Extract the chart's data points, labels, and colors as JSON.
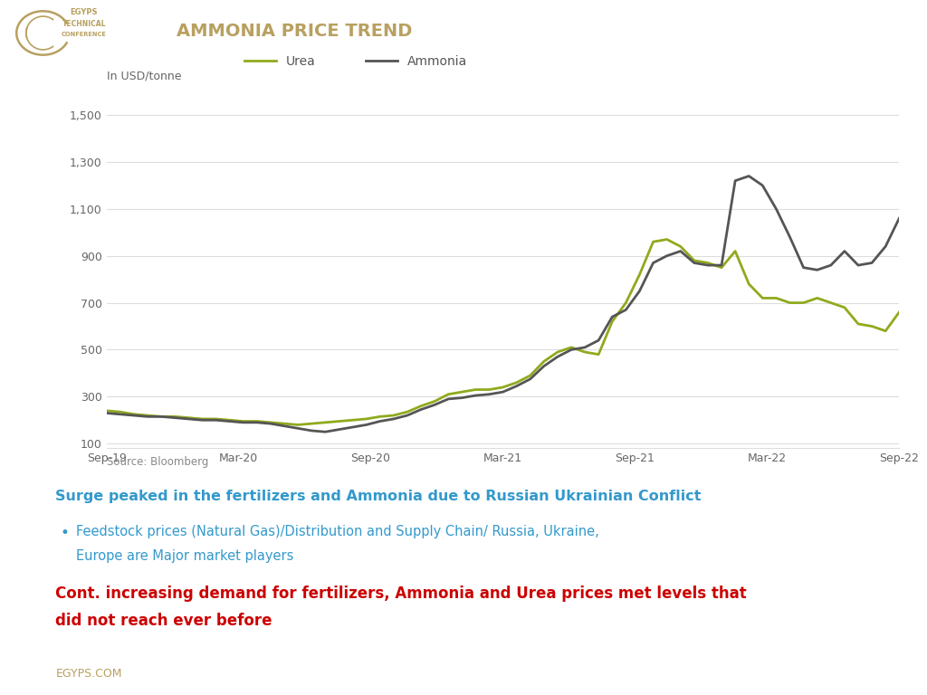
{
  "title": "AMMONIA PRICE TREND",
  "title_color": "#b8a060",
  "ylabel": "In USD/tonne",
  "source_text": "Source: Bloomberg",
  "header_line_color": "#b8a060",
  "x_labels": [
    "Sep-19",
    "Mar-20",
    "Sep-20",
    "Mar-21",
    "Sep-21",
    "Mar-22",
    "Sep-22"
  ],
  "y_ticks": [
    100,
    300,
    500,
    700,
    900,
    1100,
    1300,
    1500
  ],
  "urea_color": "#8faa1c",
  "ammonia_color": "#555555",
  "urea_values": [
    240,
    235,
    225,
    220,
    215,
    215,
    210,
    205,
    205,
    200,
    195,
    195,
    190,
    185,
    180,
    185,
    190,
    195,
    200,
    205,
    215,
    220,
    235,
    260,
    280,
    310,
    320,
    330,
    330,
    340,
    360,
    390,
    450,
    490,
    510,
    490,
    480,
    620,
    700,
    820,
    960,
    970,
    940,
    880,
    870,
    850,
    920,
    780,
    720,
    720,
    700,
    700,
    720,
    700,
    680,
    610,
    600,
    580,
    660
  ],
  "ammonia_values": [
    230,
    225,
    220,
    215,
    215,
    210,
    205,
    200,
    200,
    195,
    190,
    190,
    185,
    175,
    165,
    155,
    150,
    160,
    170,
    180,
    195,
    205,
    220,
    245,
    265,
    290,
    295,
    305,
    310,
    320,
    345,
    375,
    430,
    470,
    500,
    510,
    540,
    640,
    670,
    750,
    870,
    900,
    920,
    870,
    860,
    860,
    1220,
    1240,
    1200,
    1100,
    980,
    850,
    840,
    860,
    920,
    860,
    870,
    940,
    1060
  ],
  "fig_bg": "#ffffff",
  "grid_color": "#dddddd",
  "annotation_line1_color": "#3399cc",
  "annotation_bullet_color": "#3399cc",
  "annotation_line2_color": "#cc0000",
  "footer_color": "#b8a060"
}
